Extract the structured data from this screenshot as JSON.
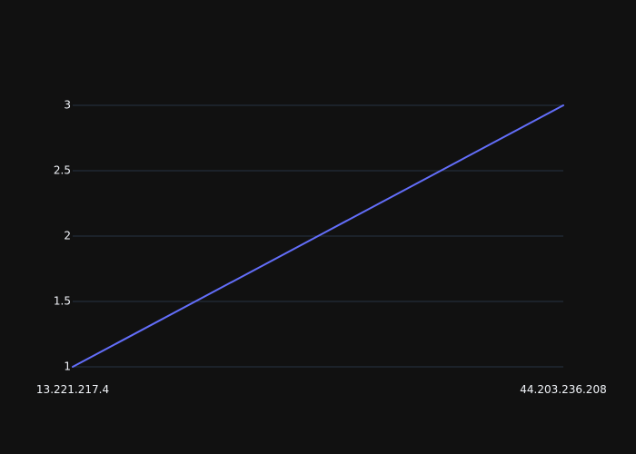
{
  "chart_data": {
    "type": "line",
    "x": [
      "13.221.217.4",
      "44.203.236.208"
    ],
    "series": [
      {
        "values": [
          1,
          3
        ],
        "color": "#636efa"
      }
    ],
    "y_ticks": [
      1,
      1.5,
      2,
      2.5,
      3
    ],
    "x_ticks": [
      "13.221.217.4",
      "44.203.236.208"
    ],
    "ylim": [
      1,
      3
    ],
    "grid": "horizontal",
    "colors": {
      "background": "#111111",
      "grid": "#283442",
      "text": "#f2f5fa"
    }
  }
}
